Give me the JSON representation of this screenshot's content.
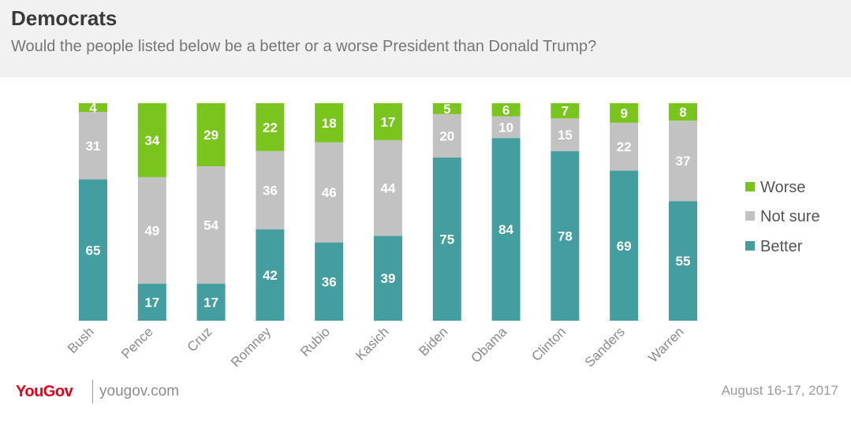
{
  "header": {
    "title": "Democrats",
    "subtitle": "Would the people listed below be a better or a worse President than Donald Trump?"
  },
  "footer": {
    "brand": "YouGov",
    "site": "yougov.com",
    "date": "August 16-17, 2017"
  },
  "colors": {
    "better": "#449e9f",
    "not_sure": "#c2c2c2",
    "worse": "#7ac41e"
  },
  "chart_data": {
    "type": "bar",
    "stacked": true,
    "orientation": "vertical",
    "title": "Democrats",
    "subtitle": "Would the people listed below be a better or a worse President than Donald Trump?",
    "categories": [
      "Bush",
      "Pence",
      "Cruz",
      "Romney",
      "Rubio",
      "Kasich",
      "Biden",
      "Obama",
      "Clinton",
      "Sanders",
      "Warren"
    ],
    "series": [
      {
        "name": "Better",
        "values": [
          65,
          17,
          17,
          42,
          36,
          39,
          75,
          84,
          78,
          69,
          55
        ]
      },
      {
        "name": "Not sure",
        "values": [
          31,
          49,
          54,
          36,
          46,
          44,
          20,
          10,
          15,
          22,
          37
        ]
      },
      {
        "name": "Worse",
        "values": [
          4,
          34,
          29,
          22,
          18,
          17,
          5,
          6,
          7,
          9,
          8
        ]
      }
    ],
    "legend": [
      "Worse",
      "Not sure",
      "Better"
    ],
    "legend_position": "right",
    "ylim": [
      0,
      100
    ],
    "grid": false,
    "xlabel": "",
    "ylabel": ""
  }
}
